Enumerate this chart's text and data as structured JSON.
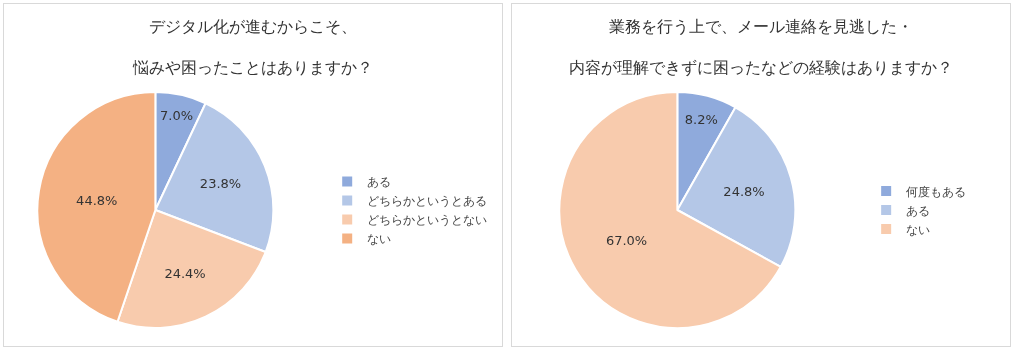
{
  "chart_data": [
    {
      "type": "pie",
      "title": "デジタル化が進むからこそ、",
      "subtitle": "悩みや困ったことはありますか？",
      "categories": [
        "ある",
        "どちらかというとある",
        "どちらかというとない",
        "ない"
      ],
      "values": [
        7.0,
        23.8,
        24.4,
        44.8
      ],
      "value_labels": [
        "7.0%",
        "23.8%",
        "24.4%",
        "44.8%"
      ],
      "colors": [
        "#8faadc",
        "#b4c7e7",
        "#f8cbad",
        "#f4b183"
      ],
      "legend": "right"
    },
    {
      "type": "pie",
      "title": "業務を行う上で、メール連絡を見逃した・",
      "subtitle": "内容が理解できずに困ったなどの経験はありますか？",
      "categories": [
        "何度もある",
        "ある",
        "ない"
      ],
      "values": [
        8.2,
        24.8,
        67.0
      ],
      "value_labels": [
        "8.2%",
        "24.8%",
        "67.0%"
      ],
      "colors": [
        "#8faadc",
        "#b4c7e7",
        "#f8cbad"
      ],
      "legend": "right"
    }
  ]
}
